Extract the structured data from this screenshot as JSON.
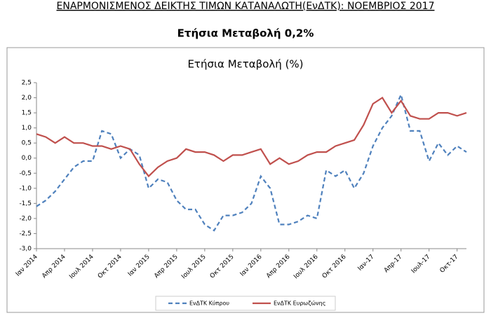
{
  "chart_data": {
    "type": "line",
    "header": "ΕΝΑΡΜΟΝΙΣΜΕΝΟΣ ΔΕΙΚΤΗΣ ΤΙΜΩΝ ΚΑΤΑΝΑΛΩΤΗ(ΕνΔΤΚ): ΝΟΕΜΒΡΙΟΣ 2017",
    "subtitle": "Ετήσια Μεταβολή 0,2%",
    "title": "Ετήσια Μεταβολή (%)",
    "categories": [
      "Ιαν 2014",
      null,
      null,
      "Απρ 2014",
      null,
      null,
      "Ιουλ 2014",
      null,
      null,
      "Οκτ 2014",
      null,
      null,
      "Ιαν 2015",
      null,
      null,
      "Απρ 2015",
      null,
      null,
      "Ιουλ 2015",
      null,
      null,
      "Οκτ 2015",
      null,
      null,
      "Ιαν 2016",
      null,
      null,
      "Απρ 2016",
      null,
      null,
      "Ιουλ 2016",
      null,
      null,
      "Οκτ 2016",
      null,
      null,
      "Ιαν-17",
      null,
      null,
      "Απρ-17",
      null,
      null,
      "Ιουλ-17",
      null,
      null,
      "Οκτ-17",
      null
    ],
    "series": [
      {
        "name": "ΕνΔΤΚ Κύπρου",
        "color": "#4f81bd",
        "dashed": true,
        "values": [
          -1.6,
          -1.4,
          -1.1,
          -0.7,
          -0.3,
          -0.1,
          -0.1,
          0.9,
          0.8,
          0.0,
          0.3,
          0.1,
          -1.0,
          -0.7,
          -0.8,
          -1.4,
          -1.7,
          -1.7,
          -2.2,
          -2.4,
          -1.9,
          -1.9,
          -1.8,
          -1.5,
          -0.6,
          -1.0,
          -2.2,
          -2.2,
          -2.1,
          -1.9,
          -2.0,
          -0.4,
          -0.6,
          -0.4,
          -1.0,
          -0.5,
          0.4,
          1.0,
          1.4,
          2.1,
          0.9,
          0.9,
          -0.1,
          0.5,
          0.1,
          0.4,
          0.2
        ]
      },
      {
        "name": "ΕνΔΤΚ Ευρωζώνης",
        "color": "#c0504d",
        "dashed": false,
        "values": [
          0.8,
          0.7,
          0.5,
          0.7,
          0.5,
          0.5,
          0.4,
          0.4,
          0.3,
          0.4,
          0.3,
          -0.2,
          -0.6,
          -0.3,
          -0.1,
          0.0,
          0.3,
          0.2,
          0.2,
          0.1,
          -0.1,
          0.1,
          0.1,
          0.2,
          0.3,
          -0.2,
          0.0,
          -0.2,
          -0.1,
          0.1,
          0.2,
          0.2,
          0.4,
          0.5,
          0.6,
          1.1,
          1.8,
          2.0,
          1.5,
          1.9,
          1.4,
          1.3,
          1.3,
          1.5,
          1.5,
          1.4,
          1.5
        ]
      }
    ],
    "ylim": [
      -3.0,
      2.5
    ],
    "yticks": [
      {
        "value": 2.5,
        "label": "2,5"
      },
      {
        "value": 2.0,
        "label": "2,0"
      },
      {
        "value": 1.5,
        "label": "1,5"
      },
      {
        "value": 1.0,
        "label": "1,0"
      },
      {
        "value": 0.5,
        "label": "0,5"
      },
      {
        "value": 0.0,
        "label": "0,0"
      },
      {
        "value": -0.5,
        "label": "-0,5"
      },
      {
        "value": -1.0,
        "label": "-1,0"
      },
      {
        "value": -1.5,
        "label": "-1,5"
      },
      {
        "value": -2.0,
        "label": "-2,0"
      },
      {
        "value": -2.5,
        "label": "-2,5"
      },
      {
        "value": -3.0,
        "label": "-3,0"
      }
    ],
    "grid": false,
    "legend": "bottom"
  }
}
